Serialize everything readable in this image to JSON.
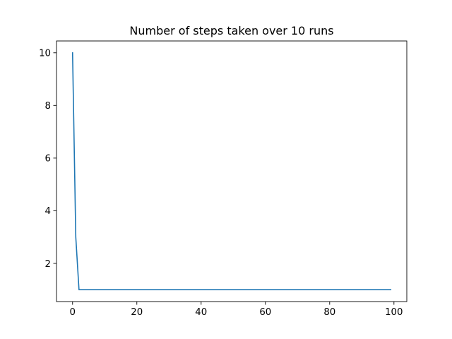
{
  "chart_data": {
    "type": "line",
    "title": "Number of steps taken over 10 runs",
    "xlabel": "",
    "ylabel": "",
    "xlim": [
      -5,
      104
    ],
    "ylim": [
      0.55,
      10.45
    ],
    "xticks": [
      0,
      20,
      40,
      60,
      80,
      100
    ],
    "yticks": [
      2,
      4,
      6,
      8,
      10
    ],
    "xtick_labels": [
      "0",
      "20",
      "40",
      "60",
      "80",
      "100"
    ],
    "ytick_labels": [
      "2",
      "4",
      "6",
      "8",
      "10"
    ],
    "grid": false,
    "series": [
      {
        "color": "#1f77b4",
        "x": [
          0,
          1,
          2,
          3,
          4,
          5,
          10,
          20,
          30,
          40,
          50,
          60,
          70,
          80,
          90,
          99
        ],
        "y": [
          10,
          3,
          1,
          1,
          1,
          1,
          1,
          1,
          1,
          1,
          1,
          1,
          1,
          1,
          1,
          1
        ]
      }
    ]
  }
}
